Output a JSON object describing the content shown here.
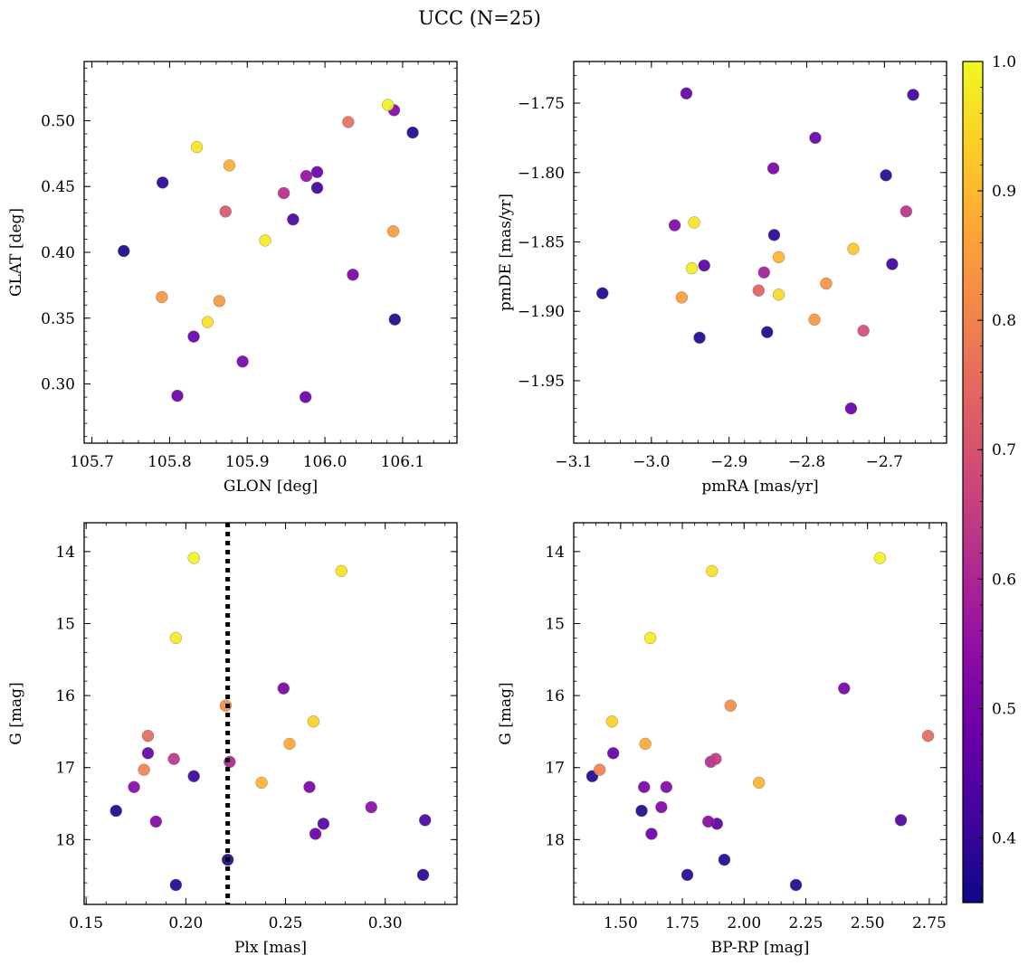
{
  "figure": {
    "title": "UCC (N=25)",
    "colorbar": {
      "colormap": "plasma",
      "range": [
        0.35,
        1.0
      ],
      "ticks": [
        0.4,
        0.5,
        0.6,
        0.7,
        0.8,
        0.9,
        1.0
      ],
      "tick_labels": [
        "0.4",
        "0.5",
        "0.6",
        "0.7",
        "0.8",
        "0.9",
        "1.0"
      ],
      "placement": "right"
    }
  },
  "chart_data": [
    {
      "type": "scatter",
      "id": "glon-glat",
      "xlabel": "GLON [deg]",
      "ylabel": "GLAT [deg]",
      "xlim": [
        105.69,
        106.17
      ],
      "ylim": [
        0.255,
        0.545
      ],
      "y_inverted": false,
      "xticks": [
        105.7,
        105.8,
        105.9,
        106.0,
        106.1
      ],
      "xtick_labels": [
        "105.7",
        "105.8",
        "105.9",
        "106.0",
        "106.1"
      ],
      "yticks": [
        0.3,
        0.35,
        0.4,
        0.45,
        0.5
      ],
      "ytick_labels": [
        "0.30",
        "0.35",
        "0.40",
        "0.45",
        "0.50"
      ],
      "points": [
        {
          "x": 105.741,
          "y": 0.401,
          "c": 0.36
        },
        {
          "x": 105.791,
          "y": 0.453,
          "c": 0.38
        },
        {
          "x": 106.113,
          "y": 0.491,
          "c": 0.37
        },
        {
          "x": 106.09,
          "y": 0.349,
          "c": 0.37
        },
        {
          "x": 105.99,
          "y": 0.449,
          "c": 0.41
        },
        {
          "x": 105.99,
          "y": 0.461,
          "c": 0.47
        },
        {
          "x": 105.959,
          "y": 0.425,
          "c": 0.43
        },
        {
          "x": 105.975,
          "y": 0.29,
          "c": 0.48
        },
        {
          "x": 105.81,
          "y": 0.291,
          "c": 0.48
        },
        {
          "x": 105.831,
          "y": 0.336,
          "c": 0.47
        },
        {
          "x": 105.894,
          "y": 0.317,
          "c": 0.5
        },
        {
          "x": 106.036,
          "y": 0.383,
          "c": 0.5
        },
        {
          "x": 106.089,
          "y": 0.508,
          "c": 0.52
        },
        {
          "x": 105.976,
          "y": 0.458,
          "c": 0.55
        },
        {
          "x": 105.947,
          "y": 0.445,
          "c": 0.62
        },
        {
          "x": 105.872,
          "y": 0.431,
          "c": 0.71
        },
        {
          "x": 106.03,
          "y": 0.499,
          "c": 0.76
        },
        {
          "x": 105.79,
          "y": 0.366,
          "c": 0.84
        },
        {
          "x": 105.864,
          "y": 0.363,
          "c": 0.84
        },
        {
          "x": 106.088,
          "y": 0.416,
          "c": 0.85
        },
        {
          "x": 105.877,
          "y": 0.466,
          "c": 0.88
        },
        {
          "x": 105.849,
          "y": 0.347,
          "c": 0.96
        },
        {
          "x": 105.835,
          "y": 0.48,
          "c": 0.97
        },
        {
          "x": 105.923,
          "y": 0.409,
          "c": 0.98
        },
        {
          "x": 106.081,
          "y": 0.512,
          "c": 0.99
        }
      ]
    },
    {
      "type": "scatter",
      "id": "pmra-pmde",
      "xlabel": "pmRA [mas/yr]",
      "ylabel": "pmDE [mas/yr]",
      "xlim": [
        -3.1,
        -2.62
      ],
      "ylim": [
        -1.995,
        -1.72
      ],
      "y_inverted": false,
      "xticks": [
        -3.1,
        -3.0,
        -2.9,
        -2.8,
        -2.7
      ],
      "xtick_labels": [
        "−3.1",
        "−3.0",
        "−2.9",
        "−2.8",
        "−2.7"
      ],
      "yticks": [
        -1.95,
        -1.9,
        -1.85,
        -1.8,
        -1.75
      ],
      "ytick_labels": [
        "−1.95",
        "−1.90",
        "−1.85",
        "−1.80",
        "−1.75"
      ],
      "points": [
        {
          "x": -3.063,
          "y": -1.887,
          "c": 0.37
        },
        {
          "x": -2.938,
          "y": -1.919,
          "c": 0.37
        },
        {
          "x": -2.851,
          "y": -1.915,
          "c": 0.37
        },
        {
          "x": -2.842,
          "y": -1.845,
          "c": 0.38
        },
        {
          "x": -2.698,
          "y": -1.802,
          "c": 0.38
        },
        {
          "x": -2.663,
          "y": -1.744,
          "c": 0.41
        },
        {
          "x": -2.69,
          "y": -1.866,
          "c": 0.41
        },
        {
          "x": -2.932,
          "y": -1.867,
          "c": 0.45
        },
        {
          "x": -2.955,
          "y": -1.743,
          "c": 0.47
        },
        {
          "x": -2.743,
          "y": -1.97,
          "c": 0.47
        },
        {
          "x": -2.789,
          "y": -1.775,
          "c": 0.48
        },
        {
          "x": -2.843,
          "y": -1.797,
          "c": 0.5
        },
        {
          "x": -2.97,
          "y": -1.838,
          "c": 0.52
        },
        {
          "x": -2.855,
          "y": -1.872,
          "c": 0.58
        },
        {
          "x": -2.672,
          "y": -1.828,
          "c": 0.63
        },
        {
          "x": -2.727,
          "y": -1.914,
          "c": 0.69
        },
        {
          "x": -2.862,
          "y": -1.885,
          "c": 0.73
        },
        {
          "x": -2.961,
          "y": -1.89,
          "c": 0.85
        },
        {
          "x": -2.79,
          "y": -1.906,
          "c": 0.84
        },
        {
          "x": -2.775,
          "y": -1.88,
          "c": 0.83
        },
        {
          "x": -2.836,
          "y": -1.861,
          "c": 0.89
        },
        {
          "x": -2.74,
          "y": -1.855,
          "c": 0.92
        },
        {
          "x": -2.836,
          "y": -1.888,
          "c": 0.95
        },
        {
          "x": -2.945,
          "y": -1.836,
          "c": 0.97
        },
        {
          "x": -2.948,
          "y": -1.869,
          "c": 0.98
        }
      ]
    },
    {
      "type": "scatter",
      "id": "plx-g",
      "xlabel": "Plx [mas]",
      "ylabel": "G [mag]",
      "xlim": [
        0.149,
        0.336
      ],
      "ylim": [
        18.9,
        13.6
      ],
      "y_inverted": true,
      "xticks": [
        0.15,
        0.2,
        0.25,
        0.3
      ],
      "xtick_labels": [
        "0.15",
        "0.20",
        "0.25",
        "0.30"
      ],
      "yticks": [
        14,
        15,
        16,
        17,
        18
      ],
      "ytick_labels": [
        "14",
        "15",
        "16",
        "17",
        "18"
      ],
      "vline": {
        "x": 0.221,
        "style": "dotted"
      },
      "points": [
        {
          "x": 0.165,
          "y": 17.6,
          "c": 0.37
        },
        {
          "x": 0.195,
          "y": 18.63,
          "c": 0.37
        },
        {
          "x": 0.221,
          "y": 18.28,
          "c": 0.37
        },
        {
          "x": 0.319,
          "y": 18.49,
          "c": 0.38
        },
        {
          "x": 0.204,
          "y": 17.12,
          "c": 0.4
        },
        {
          "x": 0.32,
          "y": 17.73,
          "c": 0.43
        },
        {
          "x": 0.269,
          "y": 17.78,
          "c": 0.45
        },
        {
          "x": 0.181,
          "y": 16.8,
          "c": 0.47
        },
        {
          "x": 0.265,
          "y": 17.92,
          "c": 0.48
        },
        {
          "x": 0.262,
          "y": 17.27,
          "c": 0.5
        },
        {
          "x": 0.249,
          "y": 15.9,
          "c": 0.5
        },
        {
          "x": 0.185,
          "y": 17.75,
          "c": 0.52
        },
        {
          "x": 0.174,
          "y": 17.27,
          "c": 0.53
        },
        {
          "x": 0.293,
          "y": 17.55,
          "c": 0.54
        },
        {
          "x": 0.222,
          "y": 16.92,
          "c": 0.6
        },
        {
          "x": 0.194,
          "y": 16.88,
          "c": 0.64
        },
        {
          "x": 0.181,
          "y": 16.56,
          "c": 0.75
        },
        {
          "x": 0.179,
          "y": 17.03,
          "c": 0.8
        },
        {
          "x": 0.22,
          "y": 16.14,
          "c": 0.82
        },
        {
          "x": 0.252,
          "y": 16.67,
          "c": 0.87
        },
        {
          "x": 0.238,
          "y": 17.21,
          "c": 0.89
        },
        {
          "x": 0.264,
          "y": 16.36,
          "c": 0.94
        },
        {
          "x": 0.278,
          "y": 14.27,
          "c": 0.96
        },
        {
          "x": 0.195,
          "y": 15.2,
          "c": 0.98
        },
        {
          "x": 0.204,
          "y": 14.09,
          "c": 0.99
        }
      ]
    },
    {
      "type": "scatter",
      "id": "bprp-g",
      "xlabel": "BP-RP [mag]",
      "ylabel": "G [mag]",
      "xlim": [
        1.31,
        2.82
      ],
      "ylim": [
        18.9,
        13.6
      ],
      "y_inverted": true,
      "xticks": [
        1.5,
        1.75,
        2.0,
        2.25,
        2.5,
        2.75
      ],
      "xtick_labels": [
        "1.50",
        "1.75",
        "2.00",
        "2.25",
        "2.50",
        "2.75"
      ],
      "yticks": [
        14,
        15,
        16,
        17,
        18
      ],
      "ytick_labels": [
        "14",
        "15",
        "16",
        "17",
        "18"
      ],
      "points": [
        {
          "x": 1.385,
          "y": 17.12,
          "c": 0.37
        },
        {
          "x": 1.585,
          "y": 17.6,
          "c": 0.37
        },
        {
          "x": 1.77,
          "y": 18.49,
          "c": 0.38
        },
        {
          "x": 1.92,
          "y": 18.28,
          "c": 0.38
        },
        {
          "x": 2.21,
          "y": 18.63,
          "c": 0.37
        },
        {
          "x": 2.635,
          "y": 17.73,
          "c": 0.43
        },
        {
          "x": 1.89,
          "y": 17.78,
          "c": 0.45
        },
        {
          "x": 1.47,
          "y": 16.8,
          "c": 0.47
        },
        {
          "x": 1.625,
          "y": 17.92,
          "c": 0.48
        },
        {
          "x": 1.595,
          "y": 17.27,
          "c": 0.5
        },
        {
          "x": 1.685,
          "y": 17.27,
          "c": 0.52
        },
        {
          "x": 1.665,
          "y": 17.55,
          "c": 0.52
        },
        {
          "x": 2.405,
          "y": 15.9,
          "c": 0.5
        },
        {
          "x": 1.855,
          "y": 17.75,
          "c": 0.53
        },
        {
          "x": 1.865,
          "y": 16.92,
          "c": 0.62
        },
        {
          "x": 1.885,
          "y": 16.88,
          "c": 0.65
        },
        {
          "x": 2.745,
          "y": 16.56,
          "c": 0.75
        },
        {
          "x": 1.415,
          "y": 17.03,
          "c": 0.8
        },
        {
          "x": 1.945,
          "y": 16.14,
          "c": 0.82
        },
        {
          "x": 1.6,
          "y": 16.67,
          "c": 0.87
        },
        {
          "x": 2.06,
          "y": 17.21,
          "c": 0.89
        },
        {
          "x": 1.465,
          "y": 16.36,
          "c": 0.94
        },
        {
          "x": 1.87,
          "y": 14.27,
          "c": 0.96
        },
        {
          "x": 1.62,
          "y": 15.2,
          "c": 0.98
        },
        {
          "x": 2.55,
          "y": 14.09,
          "c": 0.99
        }
      ]
    }
  ]
}
